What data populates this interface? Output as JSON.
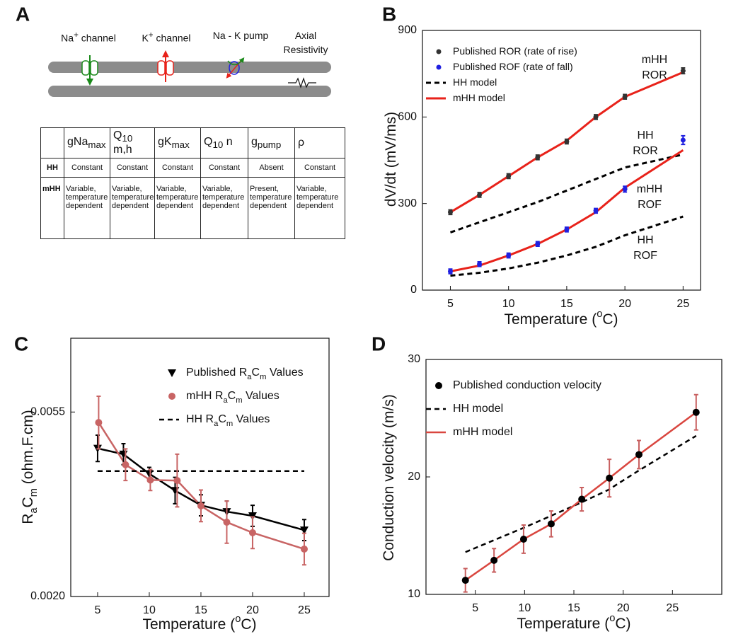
{
  "panel_a": {
    "label": "A",
    "diagram_labels": [
      [
        "Na",
        {
          "sup": "+"
        },
        " channel"
      ],
      [
        "K",
        {
          "sup": "+"
        },
        " channel"
      ],
      [
        "Na - K pump"
      ],
      [
        "Axial",
        "Resistivity"
      ]
    ],
    "table": {
      "header": [
        [
          "gNa",
          {
            "sub": "max"
          }
        ],
        [
          "Q",
          {
            "sub": "10"
          },
          " m,h"
        ],
        [
          "gK",
          {
            "sub": "max"
          }
        ],
        [
          "Q",
          {
            "sub": "10"
          },
          " n"
        ],
        [
          "g",
          {
            "sub": "pump"
          }
        ],
        [
          "ρ"
        ]
      ],
      "rows": [
        [
          "HH",
          "Constant",
          "Constant",
          "Constant",
          "Constant",
          "Absent",
          "Constant"
        ],
        [
          "mHH",
          "Variable, temperature dependent",
          "Variable, temperature dependent",
          "Variable, temperature dependent",
          "Variable, temperature dependent",
          "Present, temperature dependent",
          "Variable, temperature dependent"
        ]
      ]
    }
  },
  "chart_data": [
    {
      "panel_label": "B",
      "type": "line",
      "x_label": [
        "Temperature (",
        {
          "sup": "o"
        },
        "C)"
      ],
      "y_label": [
        "dV/dt (mV/ms)"
      ],
      "xlim": [
        2.6,
        26.5
      ],
      "ylim": [
        0,
        900
      ],
      "xticks": [
        5,
        10,
        15,
        20,
        25
      ],
      "yticks": [
        0,
        300,
        600,
        900
      ],
      "legend": "upper left",
      "series": [
        {
          "name": [
            "Published ROR (rate of rise)"
          ],
          "color": "#333333",
          "marker": "circle",
          "line": false,
          "x": [
            5,
            7.5,
            10,
            12.5,
            15,
            17.5,
            20,
            25
          ],
          "values": [
            270,
            330,
            395,
            460,
            515,
            600,
            670,
            760
          ],
          "errors": [
            8,
            8,
            8,
            8,
            8,
            8,
            8,
            10
          ]
        },
        {
          "name": [
            "Published ROF (rate of fall)"
          ],
          "color": "#2020e0",
          "marker": "circle",
          "line": false,
          "x": [
            5,
            7.5,
            10,
            12.5,
            15,
            17.5,
            20,
            25
          ],
          "values": [
            65,
            90,
            120,
            160,
            210,
            275,
            350,
            520
          ],
          "errors": [
            8,
            8,
            8,
            8,
            8,
            8,
            10,
            15
          ]
        },
        {
          "name": [
            "HH model"
          ],
          "color": "#000000",
          "dash": true,
          "x": [
            5,
            7.5,
            10,
            12.5,
            15,
            17.5,
            20,
            25
          ],
          "values": [
            200,
            235,
            270,
            305,
            345,
            385,
            425,
            470
          ]
        },
        {
          "name": [
            "mHH model"
          ],
          "color": "#e8221a",
          "x": [
            5,
            7.5,
            10,
            12.5,
            15,
            17.5,
            20,
            25
          ],
          "values": [
            270,
            330,
            395,
            460,
            518,
            600,
            670,
            755
          ]
        },
        {
          "color": "#000000",
          "dash": true,
          "x": [
            5,
            7.5,
            10,
            12.5,
            15,
            17.5,
            20,
            25
          ],
          "values": [
            50,
            60,
            75,
            95,
            120,
            150,
            190,
            255
          ]
        },
        {
          "color": "#e8221a",
          "x": [
            5,
            7.5,
            10,
            12.5,
            15,
            17.5,
            20,
            25
          ],
          "values": [
            65,
            85,
            120,
            160,
            210,
            270,
            355,
            485
          ]
        }
      ],
      "annotations": [
        {
          "lines": [
            "mHH",
            "ROR"
          ],
          "color": "#e8221a"
        },
        {
          "lines": [
            "HH",
            "ROR"
          ],
          "color": "#000000"
        },
        {
          "lines": [
            "mHH",
            "ROF"
          ],
          "color": "#e8221a"
        },
        {
          "lines": [
            "HH",
            "ROF"
          ],
          "color": "#000000"
        }
      ]
    },
    {
      "panel_label": "C",
      "type": "line",
      "x_label": [
        "Temperature (",
        {
          "sup": "o"
        },
        "C)"
      ],
      "y_label": [
        "R",
        {
          "sub": "a"
        },
        "C",
        {
          "sub": "m"
        },
        " (ohm.F.cm)"
      ],
      "xlim": [
        2.4,
        27.4
      ],
      "ylim": [
        0.002,
        0.0069
      ],
      "xticks": [
        5,
        10,
        15,
        20,
        25
      ],
      "yticks": [
        {
          "value": 0.002,
          "label": "0.0020"
        },
        0.0055
      ],
      "legend": "upper right",
      "series": [
        {
          "name": [
            "Published R",
            {
              "sub": "a"
            },
            "C",
            {
              "sub": "m"
            },
            " Values"
          ],
          "color": "#000000",
          "marker": "triangle",
          "x": [
            5,
            7.5,
            10,
            12.5,
            15,
            17.5,
            20,
            25
          ],
          "values": [
            0.00481,
            0.0047,
            0.00433,
            0.00401,
            0.00373,
            0.00361,
            0.00353,
            0.00326
          ],
          "errors": [
            0.00025,
            0.0002,
            0.00012,
            0.00025,
            0.0002,
            0.0002,
            0.0002,
            0.0002
          ]
        },
        {
          "name": [
            "mHH R",
            {
              "sub": "a"
            },
            "C",
            {
              "sub": "m"
            },
            " Values"
          ],
          "color": "#c86464",
          "marker": "circle",
          "x": [
            5.1,
            7.7,
            10.1,
            12.7,
            15,
            17.5,
            20,
            25
          ],
          "values": [
            0.0053,
            0.0045,
            0.00421,
            0.0042,
            0.00372,
            0.00341,
            0.00321,
            0.0029
          ],
          "errors": [
            0.0005,
            0.0003,
            0.0002,
            0.0005,
            0.0003,
            0.0004,
            0.0003,
            0.0003
          ]
        },
        {
          "name": [
            "HH R",
            {
              "sub": "a"
            },
            "C",
            {
              "sub": "m"
            },
            " Values"
          ],
          "color": "#000000",
          "dash": true,
          "x": [
            5,
            25
          ],
          "values": [
            0.00438,
            0.00438
          ]
        }
      ]
    },
    {
      "panel_label": "D",
      "type": "line",
      "x_label": [
        "Temperature (",
        {
          "sup": "o"
        },
        "C)"
      ],
      "y_label": [
        "Conduction velocity (m/s)"
      ],
      "xlim": [
        0,
        30
      ],
      "ylim": [
        10,
        30
      ],
      "xticks": [
        5,
        10,
        15,
        20,
        25
      ],
      "yticks": [
        10,
        20,
        30
      ],
      "legend": "upper left",
      "series": [
        {
          "name": [
            "Published conduction velocity"
          ],
          "color": "#000000",
          "marker": "circle",
          "line": false,
          "error_color": "#c85f5f",
          "x": [
            4,
            6.9,
            9.9,
            12.7,
            15.8,
            18.6,
            21.6,
            27.4
          ],
          "values": [
            11.2,
            12.9,
            14.7,
            16,
            18.1,
            19.9,
            21.9,
            25.5
          ],
          "errors": [
            1,
            1,
            1.2,
            1.1,
            1,
            1.6,
            1.2,
            1.5
          ]
        },
        {
          "name": [
            "HH model"
          ],
          "color": "#000000",
          "dash": true,
          "x": [
            4,
            10,
            15.7,
            18.5,
            21.5,
            27.4
          ],
          "values": [
            13.6,
            15.7,
            17.8,
            18.9,
            20.5,
            23.5
          ]
        },
        {
          "name": [
            "mHH model"
          ],
          "color": "#d9463f",
          "x": [
            4,
            6.9,
            9.9,
            12.7,
            15.8,
            18.6,
            21.6,
            27.4
          ],
          "values": [
            11.2,
            12.9,
            14.7,
            16,
            18.1,
            19.9,
            21.9,
            25.5
          ]
        }
      ]
    }
  ]
}
